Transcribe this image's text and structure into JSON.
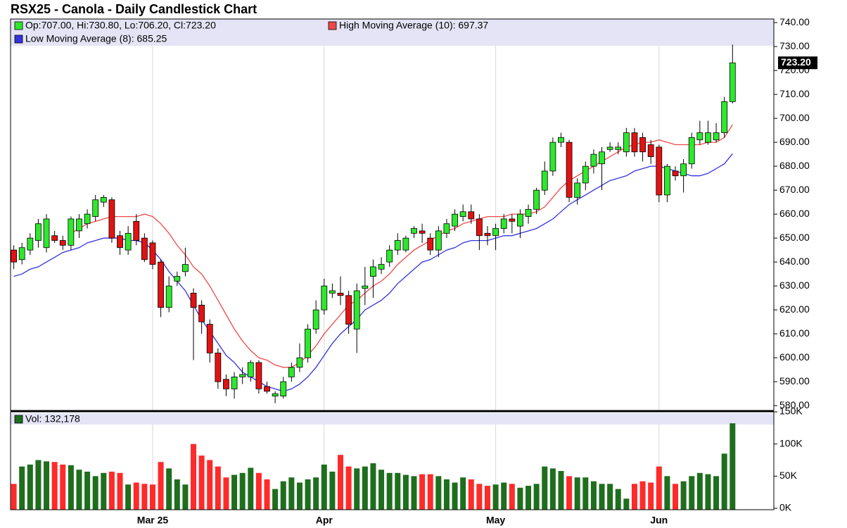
{
  "chart_data": [
    {
      "type": "candlestick",
      "title": "RSX25 - Canola - Daily Candlestick Chart",
      "info_text": "Op:707.00, Hi:730.80, Lo:706.20, Cl:723.20",
      "categories": [
        null,
        null,
        null,
        null,
        null,
        null,
        null,
        null,
        null,
        null,
        null,
        null,
        null,
        null,
        null,
        null,
        null,
        "Mar 25",
        null,
        null,
        null,
        null,
        null,
        null,
        null,
        null,
        null,
        null,
        null,
        null,
        null,
        null,
        null,
        null,
        null,
        null,
        null,
        null,
        "Apr",
        null,
        null,
        null,
        null,
        null,
        null,
        null,
        null,
        null,
        null,
        null,
        null,
        null,
        null,
        null,
        null,
        null,
        null,
        null,
        null,
        "May",
        null,
        null,
        null,
        null,
        null,
        null,
        null,
        null,
        null,
        null,
        null,
        null,
        null,
        null,
        null,
        null,
        null,
        null,
        null,
        "Jun",
        null,
        null,
        null,
        null,
        null,
        null,
        null,
        null,
        null
      ],
      "open": [
        645,
        641,
        645,
        649,
        646,
        651,
        649,
        647,
        653,
        656,
        659,
        665,
        666,
        651,
        645,
        657,
        650,
        648,
        640,
        621,
        632,
        636,
        627,
        622,
        614,
        602,
        591,
        587,
        592,
        592,
        598,
        588,
        584,
        584,
        592,
        596,
        600,
        612,
        620,
        627,
        627,
        626,
        612,
        629,
        634,
        637,
        640,
        645,
        645,
        652,
        653,
        650,
        645,
        652,
        655,
        659,
        661,
        658,
        652,
        651,
        654,
        658,
        655,
        659,
        662,
        670,
        678,
        690,
        690,
        667,
        673,
        680,
        681,
        687,
        687,
        686,
        694,
        692,
        689,
        688,
        668,
        678,
        676,
        681,
        691,
        690,
        691,
        694,
        707
      ],
      "high": [
        647,
        648,
        652,
        658,
        660,
        653,
        651,
        659,
        660,
        662,
        668,
        668,
        667,
        653,
        655,
        660,
        652,
        649,
        641,
        634,
        636,
        646,
        629,
        624,
        616,
        604,
        593,
        594,
        596,
        599,
        599,
        590,
        586,
        592,
        598,
        606,
        614,
        624,
        633,
        631,
        634,
        628,
        631,
        638,
        641,
        642,
        647,
        652,
        651,
        655,
        656,
        652,
        655,
        658,
        662,
        664,
        664,
        660,
        655,
        656,
        660,
        660,
        662,
        664,
        671,
        682,
        692,
        694,
        691,
        675,
        682,
        687,
        688,
        690,
        690,
        696,
        696,
        694,
        691,
        689,
        681,
        680,
        683,
        694,
        699,
        699,
        698,
        709,
        730.8
      ],
      "low": [
        637,
        639,
        643,
        646,
        644,
        648,
        645,
        645,
        650,
        654,
        657,
        663,
        648,
        643,
        643,
        647,
        640,
        637,
        617,
        619,
        630,
        634,
        599,
        610,
        598,
        587,
        584,
        583,
        589,
        590,
        585,
        585,
        581,
        583,
        590,
        594,
        598,
        610,
        618,
        625,
        622,
        610,
        602,
        622,
        625,
        635,
        638,
        643,
        644,
        650,
        648,
        643,
        642,
        650,
        653,
        657,
        656,
        645,
        647,
        645,
        652,
        652,
        650,
        656,
        660,
        668,
        676,
        688,
        665,
        664,
        670,
        677,
        670,
        686,
        685,
        684,
        684,
        682,
        681,
        665,
        665,
        674,
        669,
        679,
        689,
        689,
        690,
        692,
        706.2
      ],
      "close": [
        640,
        646,
        650,
        656,
        658,
        649,
        647,
        658,
        658,
        660,
        666,
        667,
        650,
        646,
        652,
        649,
        641,
        639,
        621,
        630,
        634,
        639,
        621,
        615,
        602,
        590,
        587,
        592,
        593,
        598,
        587,
        586,
        585,
        590,
        596,
        600,
        612,
        620,
        630,
        628,
        626,
        614,
        628,
        630,
        638,
        639,
        645,
        649,
        650,
        654,
        652,
        645,
        653,
        656,
        660,
        661,
        658,
        651,
        651,
        654,
        658,
        657,
        660,
        662,
        670,
        678,
        690,
        692,
        667,
        673,
        680,
        685,
        686,
        688,
        688,
        694,
        686,
        686,
        684,
        668,
        680,
        676,
        681,
        692,
        694,
        694,
        694,
        707,
        723.2
      ],
      "last_price_label": "723.20",
      "up_color": "#2ee82e",
      "down_color": "#e31212",
      "series": [
        {
          "name": "High Moving Average (10): 697.37",
          "color": "#f04848",
          "values": [
            null,
            null,
            null,
            null,
            null,
            null,
            null,
            652,
            654,
            656,
            657,
            658,
            659,
            659,
            659,
            659,
            660,
            659,
            656,
            652,
            647,
            643,
            638,
            635,
            630,
            624,
            618,
            612,
            607,
            603,
            600,
            599,
            597,
            596,
            596,
            598,
            601,
            605,
            610,
            614,
            618,
            622,
            624,
            627,
            630,
            632,
            635,
            639,
            642,
            645,
            647,
            649,
            651,
            653,
            654,
            656,
            657,
            658,
            659,
            659,
            659,
            660,
            660,
            660,
            661,
            663,
            667,
            671,
            674,
            676,
            678,
            680,
            682,
            684,
            686,
            688,
            689,
            690,
            690,
            691,
            690,
            689,
            689,
            689,
            689,
            690,
            690,
            692,
            697.37
          ]
        },
        {
          "name": "Low Moving Average (8): 685.25",
          "color": "#3333e0",
          "values": [
            634,
            635,
            637,
            638,
            640,
            642,
            644,
            645,
            646,
            648,
            649,
            650,
            650,
            650,
            649,
            649,
            648,
            645,
            641,
            636,
            632,
            628,
            622,
            616,
            611,
            606,
            601,
            598,
            594,
            592,
            590,
            588,
            587,
            586,
            587,
            589,
            592,
            596,
            601,
            606,
            610,
            613,
            616,
            620,
            622,
            624,
            627,
            631,
            634,
            637,
            640,
            641,
            643,
            645,
            646,
            648,
            649,
            649,
            649,
            650,
            651,
            651,
            652,
            653,
            654,
            656,
            658,
            661,
            664,
            666,
            668,
            670,
            672,
            674,
            675,
            676,
            678,
            679,
            680,
            680,
            679,
            678,
            677,
            676,
            676,
            677,
            679,
            681,
            685.25
          ]
        }
      ],
      "ylim": [
        578,
        741.5
      ],
      "yticks": [
        {
          "value": 580,
          "label": "580.00"
        },
        {
          "value": 590,
          "label": "590.00"
        },
        {
          "value": 600,
          "label": "600.00"
        },
        {
          "value": 610,
          "label": "610.00"
        },
        {
          "value": 620,
          "label": "620.00"
        },
        {
          "value": 630,
          "label": "630.00"
        },
        {
          "value": 640,
          "label": "640.00"
        },
        {
          "value": 650,
          "label": "650.00"
        },
        {
          "value": 660,
          "label": "660.00"
        },
        {
          "value": 670,
          "label": "670.00"
        },
        {
          "value": 680,
          "label": "680.00"
        },
        {
          "value": 690,
          "label": "690.00"
        },
        {
          "value": 700,
          "label": "700.00"
        },
        {
          "value": 710,
          "label": "710.00"
        },
        {
          "value": 720,
          "label": "720.00"
        },
        {
          "value": 730,
          "label": "730.00"
        },
        {
          "value": 740,
          "label": "740.00"
        }
      ],
      "xgrid": true,
      "ygrid": false
    },
    {
      "type": "bar",
      "series": [
        {
          "name": "Vol: 132,178",
          "color": "#1e6e1e"
        }
      ],
      "values": [
        38000,
        65000,
        68000,
        75000,
        73000,
        72000,
        68000,
        67000,
        60000,
        57000,
        50000,
        55000,
        57000,
        55000,
        37000,
        40000,
        38000,
        37000,
        72000,
        62000,
        45000,
        37000,
        100000,
        82000,
        75000,
        65000,
        48000,
        52000,
        55000,
        63000,
        55000,
        45000,
        30000,
        42000,
        48000,
        40000,
        45000,
        48000,
        68000,
        57000,
        83000,
        65000,
        62000,
        65000,
        70000,
        60000,
        55000,
        55000,
        52000,
        50000,
        53000,
        53000,
        50000,
        45000,
        40000,
        48000,
        45000,
        38000,
        35000,
        37000,
        40000,
        38000,
        32000,
        35000,
        38000,
        65000,
        62000,
        58000,
        50000,
        48000,
        48000,
        42000,
        38000,
        38000,
        30000,
        15000,
        38000,
        42000,
        40000,
        65000,
        50000,
        38000,
        42000,
        50000,
        55000,
        53000,
        50000,
        85000,
        132178
      ],
      "up_color": "#1e6e1e",
      "down_color": "#ff2a2a",
      "ylim": [
        0,
        150000
      ],
      "yticks": [
        {
          "value": 0,
          "label": "0K"
        },
        {
          "value": 50000,
          "label": "50K"
        },
        {
          "value": 100000,
          "label": "100K"
        },
        {
          "value": 150000,
          "label": "150K"
        }
      ]
    }
  ]
}
